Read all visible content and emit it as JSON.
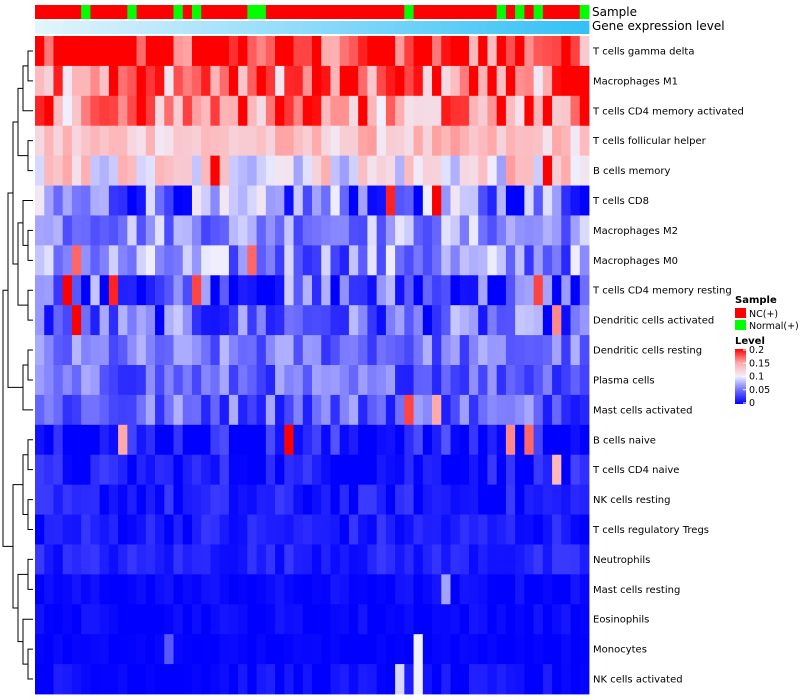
{
  "chart_data": {
    "type": "heatmap",
    "title": "",
    "annotation_tracks": [
      {
        "name": "Sample",
        "label": "Sample",
        "values": [
          "NC(+)",
          "NC(+)",
          "NC(+)",
          "NC(+)",
          "NC(+)",
          "Normal(+)",
          "NC(+)",
          "NC(+)",
          "NC(+)",
          "NC(+)",
          "Normal(+)",
          "NC(+)",
          "NC(+)",
          "NC(+)",
          "NC(+)",
          "Normal(+)",
          "NC(+)",
          "Normal(+)",
          "NC(+)",
          "NC(+)",
          "NC(+)",
          "NC(+)",
          "NC(+)",
          "Normal(+)",
          "Normal(+)",
          "NC(+)",
          "NC(+)",
          "NC(+)",
          "NC(+)",
          "NC(+)",
          "NC(+)",
          "NC(+)",
          "NC(+)",
          "NC(+)",
          "NC(+)",
          "NC(+)",
          "NC(+)",
          "NC(+)",
          "NC(+)",
          "NC(+)",
          "Normal(+)",
          "NC(+)",
          "NC(+)",
          "NC(+)",
          "NC(+)",
          "NC(+)",
          "NC(+)",
          "NC(+)",
          "NC(+)",
          "NC(+)",
          "Normal(+)",
          "NC(+)",
          "Normal(+)",
          "NC(+)",
          "Normal(+)",
          "NC(+)",
          "NC(+)",
          "NC(+)",
          "NC(+)",
          "Normal(+)"
        ]
      },
      {
        "name": "Gene expression level",
        "label": "Gene expression level",
        "gradient": [
          "#e2f4fd",
          "#35c1f5"
        ]
      }
    ],
    "rows": [
      "T cells gamma delta",
      "Macrophages M1",
      "T cells CD4 memory activated",
      "T cells follicular helper",
      "B cells memory",
      "T cells CD8",
      "Macrophages M2",
      "Macrophages M0",
      "T cells CD4 memory resting",
      "Dendritic cells activated",
      "Dendritic cells resting",
      "Plasma cells",
      "Mast cells activated",
      "B cells naive",
      "T cells CD4 naive",
      "NK cells resting",
      "T cells regulatory  Tregs",
      "Neutrophils",
      "Mast cells resting",
      "Eosinophils",
      "Monocytes",
      "NK cells activated"
    ],
    "n_columns": 60,
    "row_base_levels": [
      0.19,
      0.17,
      0.16,
      0.13,
      0.11,
      0.05,
      0.065,
      0.06,
      0.03,
      0.04,
      0.05,
      0.045,
      0.045,
      0.01,
      0.01,
      0.01,
      0.012,
      0.015,
      0.003,
      0.003,
      0.001,
      0.003
    ],
    "row_variation": [
      0.065,
      0.065,
      0.06,
      0.025,
      0.045,
      0.06,
      0.035,
      0.045,
      0.06,
      0.045,
      0.03,
      0.03,
      0.035,
      0.03,
      0.02,
      0.018,
      0.015,
      0.012,
      0.008,
      0.008,
      0.004,
      0.012
    ],
    "highlights": [
      [
        0,
        0,
        0.2
      ],
      [
        0,
        6,
        0.2
      ],
      [
        0,
        9,
        0.2
      ],
      [
        0,
        13,
        0.2
      ],
      [
        0,
        19,
        0.2
      ],
      [
        0,
        20,
        0.2
      ],
      [
        0,
        26,
        0.2
      ],
      [
        0,
        37,
        0.2
      ],
      [
        2,
        0,
        0.19
      ],
      [
        2,
        22,
        0.2
      ],
      [
        4,
        19,
        0.2
      ],
      [
        4,
        55,
        0.2
      ],
      [
        5,
        38,
        0.19
      ],
      [
        5,
        43,
        0.2
      ],
      [
        7,
        4,
        0.17
      ],
      [
        7,
        23,
        0.17
      ],
      [
        8,
        3,
        0.2
      ],
      [
        8,
        8,
        0.19
      ],
      [
        8,
        17,
        0.18
      ],
      [
        8,
        54,
        0.18
      ],
      [
        9,
        4,
        0.2
      ],
      [
        9,
        56,
        0.16
      ],
      [
        12,
        40,
        0.18
      ],
      [
        12,
        43,
        0.15
      ],
      [
        13,
        9,
        0.15
      ],
      [
        13,
        27,
        0.2
      ],
      [
        13,
        51,
        0.16
      ],
      [
        13,
        53,
        0.17
      ],
      [
        14,
        56,
        0.14
      ],
      [
        18,
        44,
        0.07
      ],
      [
        20,
        14,
        0.04
      ],
      [
        20,
        41,
        0.1
      ],
      [
        21,
        39,
        0.09
      ],
      [
        21,
        41,
        0.1
      ]
    ],
    "row_dendrogram_order": "hierarchical clustering (complete)",
    "color_scale": {
      "stops": [
        0,
        0.05,
        0.1,
        0.15,
        0.2
      ],
      "colors": [
        "#0000ff",
        "#6e6eff",
        "#f0f0ff",
        "#ffaaaa",
        "#ff0000"
      ]
    }
  },
  "legend": {
    "sample_title": "Sample",
    "sample_items": [
      {
        "label": "NC(+)",
        "color": "#ff0000"
      },
      {
        "label": "Normal(+)",
        "color": "#00ff00"
      }
    ],
    "level_title": "Level",
    "level_ticks": [
      "0.2",
      "0.15",
      "0.1",
      "0.05",
      "0"
    ]
  },
  "colors": {
    "nc": "#ff0000",
    "normal": "#00ff00",
    "high": "#ff0000",
    "mid": "#f0f0ff",
    "low": "#0000ff"
  }
}
